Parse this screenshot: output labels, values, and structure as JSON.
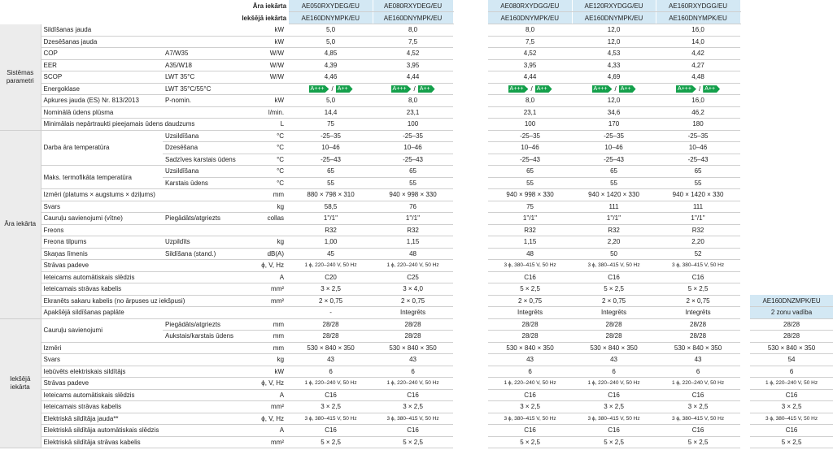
{
  "header": {
    "outdoor_label": "Āra iekārta",
    "outdoor_models": [
      "AE050RXYDEG/EU",
      "AE080RXYDEG/EU",
      "AE080RXYDGG/EU",
      "AE120RXYDGG/EU",
      "AE160RXYDGG/EU"
    ],
    "indoor_label": "Iekšējā iekārta",
    "indoor_models": [
      "AE160DNYMPK/EU",
      "AE160DNYMPK/EU",
      "AE160DNYMPK/EU",
      "AE160DNYMPK/EU",
      "AE160DNYMPK/EU"
    ]
  },
  "extra_unit": {
    "model": "AE160DNZMPK/EU",
    "note": "2 zonu vadība"
  },
  "sections": [
    {
      "title": "Sistēmas parametri",
      "groups": [
        {
          "label": "Sildīšanas jauda",
          "rows": [
            {
              "unit": "kW",
              "values": [
                "5,0",
                "8,0",
                "8,0",
                "12,0",
                "16,0"
              ]
            }
          ]
        },
        {
          "label": "Dzesēšanas jauda",
          "rows": [
            {
              "unit": "kW",
              "values": [
                "5,0",
                "7,5",
                "7,5",
                "12,0",
                "14,0"
              ]
            }
          ]
        },
        {
          "label": "COP",
          "rows": [
            {
              "sub": "A7/W35",
              "unit": "W/W",
              "values": [
                "4,85",
                "4,52",
                "4,52",
                "4,53",
                "4,42"
              ]
            }
          ]
        },
        {
          "label": "EER",
          "rows": [
            {
              "sub": "A35/W18",
              "unit": "W/W",
              "values": [
                "4,39",
                "3,95",
                "3,95",
                "4,33",
                "4,27"
              ]
            }
          ]
        },
        {
          "label": "SCOP",
          "rows": [
            {
              "sub": "LWT 35°C",
              "unit": "W/W",
              "values": [
                "4,46",
                "4,44",
                "4,44",
                "4,69",
                "4,48"
              ]
            }
          ]
        },
        {
          "label": "Energoklase",
          "rows": [
            {
              "sub": "LWT 35°C/55°C",
              "values": [
                {
                  "high": "A+++",
                  "sep": "/",
                  "low": "A++"
                },
                {
                  "high": "A+++",
                  "sep": "/",
                  "low": "A++"
                },
                {
                  "high": "A+++",
                  "sep": "/",
                  "low": "A++"
                },
                {
                  "high": "A+++",
                  "sep": "/",
                  "low": "A++"
                },
                {
                  "high": "A+++",
                  "sep": "/",
                  "low": "A++"
                }
              ]
            }
          ]
        },
        {
          "label": "Apkures jauda (ES) Nr. 813/2013",
          "rows": [
            {
              "sub": "P-nomin.",
              "unit": "kW",
              "values": [
                "5,0",
                "8,0",
                "8,0",
                "12,0",
                "16,0"
              ]
            }
          ]
        },
        {
          "label": "Nominālā ūdens plūsma",
          "rows": [
            {
              "unit": "l/min.",
              "values": [
                "14,4",
                "23,1",
                "23,1",
                "34,6",
                "46,2"
              ]
            }
          ]
        },
        {
          "label": "Minimālais nepārtraukti pieejamais ūdens daudzums",
          "rows": [
            {
              "unit": "L",
              "values": [
                "75",
                "100",
                "100",
                "170",
                "180"
              ]
            }
          ]
        }
      ]
    },
    {
      "title": "Āra iekārta",
      "groups": [
        {
          "label": "Darba āra temperatūra",
          "rows": [
            {
              "sub": "Uzsildīšana",
              "unit": "°C",
              "values": [
                "-25–35",
                "-25–35",
                "-25–35",
                "-25–35",
                "-25–35"
              ]
            },
            {
              "sub": "Dzesēšana",
              "unit": "°C",
              "values": [
                "10–46",
                "10–46",
                "10–46",
                "10–46",
                "10–46"
              ]
            },
            {
              "sub": "Sadzīves karstais ūdens",
              "unit": "°C",
              "values": [
                "-25–43",
                "-25–43",
                "-25–43",
                "-25–43",
                "-25–43"
              ]
            }
          ]
        },
        {
          "label": "Maks. termofikāta temperatūra",
          "rows": [
            {
              "sub": "Uzsildīšana",
              "unit": "°C",
              "values": [
                "65",
                "65",
                "65",
                "65",
                "65"
              ]
            },
            {
              "sub": "Karstais ūdens",
              "unit": "°C",
              "values": [
                "55",
                "55",
                "55",
                "55",
                "55"
              ]
            }
          ]
        },
        {
          "label": "Izmēri (platums × augstums × dziļums)",
          "rows": [
            {
              "unit": "mm",
              "values": [
                "880 × 798 × 310",
                "940 × 998 × 330",
                "940 × 998 × 330",
                "940 × 1420 × 330",
                "940 × 1420 × 330"
              ]
            }
          ]
        },
        {
          "label": "Svars",
          "rows": [
            {
              "unit": "kg",
              "values": [
                "58,5",
                "76",
                "75",
                "111",
                "111"
              ]
            }
          ]
        },
        {
          "label": "Cauruļu savienojumi (vītne)",
          "rows": [
            {
              "sub": "Piegādāts/atgriezts",
              "unit": "collas",
              "values": [
                "1''/1''",
                "1''/1''",
                "1''/1''",
                "1''/1''",
                "1''/1''"
              ]
            }
          ]
        },
        {
          "label": "Freons",
          "rows": [
            {
              "values": [
                "R32",
                "R32",
                "R32",
                "R32",
                "R32"
              ]
            }
          ]
        },
        {
          "label": "Freona tilpums",
          "rows": [
            {
              "sub": "Uzpildīts",
              "unit": "kg",
              "values": [
                "1,00",
                "1,15",
                "1,15",
                "2,20",
                "2,20"
              ]
            }
          ]
        },
        {
          "label": "Skaņas līmenis",
          "rows": [
            {
              "sub": "Sildīšana (stand.)",
              "unit": "dB(A)",
              "values": [
                "45",
                "48",
                "48",
                "50",
                "52"
              ]
            }
          ]
        },
        {
          "label": "Strāvas padeve",
          "rows": [
            {
              "unit": "ϕ, V, Hz",
              "values": [
                "1 ϕ, 220–240 V, 50 Hz",
                "1 ϕ, 220–240 V, 50 Hz",
                "3 ϕ, 380–415 V, 50 Hz",
                "3 ϕ, 380–415 V, 50 Hz",
                "3 ϕ, 380–415 V, 50 Hz"
              ]
            }
          ]
        },
        {
          "label": "Ieteicams automātiskais slēdzis",
          "rows": [
            {
              "unit": "A",
              "values": [
                "C20",
                "C25",
                "C16",
                "C16",
                "C16"
              ]
            }
          ]
        },
        {
          "label": "Ieteicamais strāvas kabelis",
          "rows": [
            {
              "unit": "mm²",
              "values": [
                "3 × 2,5",
                "3 × 4,0",
                "5 × 2,5",
                "5 × 2,5",
                "5 × 2,5"
              ]
            }
          ]
        },
        {
          "label": "Ekranēts sakaru kabelis (no ārpuses uz iekšpusi)",
          "rows": [
            {
              "unit": "mm²",
              "values": [
                "2 × 0,75",
                "2 × 0,75",
                "2 × 0,75",
                "2 × 0,75",
                "2 × 0,75"
              ]
            }
          ]
        },
        {
          "label": "Apakšējā sildīšanas paplāte",
          "rows": [
            {
              "values": [
                "-",
                "Integrēts",
                "Integrēts",
                "Integrēts",
                "Integrēts"
              ]
            }
          ]
        }
      ]
    },
    {
      "title": "Iekšējā iekārta",
      "groups": [
        {
          "label": "Cauruļu savienojumi",
          "rows": [
            {
              "sub": "Piegādāts/atgriezts",
              "unit": "mm",
              "values": [
                "28/28",
                "28/28",
                "28/28",
                "28/28",
                "28/28"
              ],
              "extra": "28/28"
            },
            {
              "sub": "Aukstais/karstais ūdens",
              "unit": "mm",
              "values": [
                "28/28",
                "28/28",
                "28/28",
                "28/28",
                "28/28"
              ],
              "extra": "28/28"
            }
          ]
        },
        {
          "label": "Izmēri",
          "rows": [
            {
              "unit": "mm",
              "values": [
                "530 × 840 × 350",
                "530 × 840 × 350",
                "530 × 840 × 350",
                "530 × 840 × 350",
                "530 × 840 × 350"
              ],
              "extra": "530 × 840 × 350"
            }
          ]
        },
        {
          "label": "Svars",
          "rows": [
            {
              "unit": "kg",
              "values": [
                "43",
                "43",
                "43",
                "43",
                "43"
              ],
              "extra": "54"
            }
          ]
        },
        {
          "label": "Iebūvēts elektriskais sildītājs",
          "rows": [
            {
              "unit": "kW",
              "values": [
                "6",
                "6",
                "6",
                "6",
                "6"
              ],
              "extra": "6"
            }
          ]
        },
        {
          "label": "Strāvas padeve",
          "rows": [
            {
              "unit": "ϕ, V, Hz",
              "values": [
                "1 ϕ, 220–240 V, 50 Hz",
                "1 ϕ, 220–240 V, 50 Hz",
                "1 ϕ, 220–240 V, 50 Hz",
                "1 ϕ, 220–240 V, 50 Hz",
                "1 ϕ, 220–240 V, 50 Hz"
              ],
              "extra": "1 ϕ, 220–240 V, 50 Hz"
            }
          ]
        },
        {
          "label": "Ieteicams automātiskais slēdzis",
          "rows": [
            {
              "unit": "A",
              "values": [
                "C16",
                "C16",
                "C16",
                "C16",
                "C16"
              ],
              "extra": "C16"
            }
          ]
        },
        {
          "label": "Ieteicamais strāvas kabelis",
          "rows": [
            {
              "unit": "mm²",
              "values": [
                "3 × 2,5",
                "3 × 2,5",
                "3 × 2,5",
                "3 × 2,5",
                "3 × 2,5"
              ],
              "extra": "3 × 2,5"
            }
          ]
        },
        {
          "label": "Elektriskā sildītāja jauda**",
          "rows": [
            {
              "unit": "ϕ, V, Hz",
              "values": [
                "3 ϕ, 380–415 V, 50 Hz",
                "3 ϕ, 380–415 V, 50 Hz",
                "3 ϕ, 380–415 V, 50 Hz",
                "3 ϕ, 380–415 V, 50 Hz",
                "3 ϕ, 380–415 V, 50 Hz"
              ],
              "extra": "3 ϕ, 380–415 V, 50 Hz"
            }
          ]
        },
        {
          "label": "Elektriskā sildītāja automātiskais slēdzis",
          "rows": [
            {
              "unit": "A",
              "values": [
                "C16",
                "C16",
                "C16",
                "C16",
                "C16"
              ],
              "extra": "C16"
            }
          ]
        },
        {
          "label": "Elektriskā sildītāja strāvas kabelis",
          "rows": [
            {
              "unit": "mm²",
              "values": [
                "5 × 2,5",
                "5 × 2,5",
                "5 × 2,5",
                "5 × 2,5",
                "5 × 2,5"
              ],
              "extra": "5 × 2,5"
            }
          ]
        }
      ]
    }
  ]
}
